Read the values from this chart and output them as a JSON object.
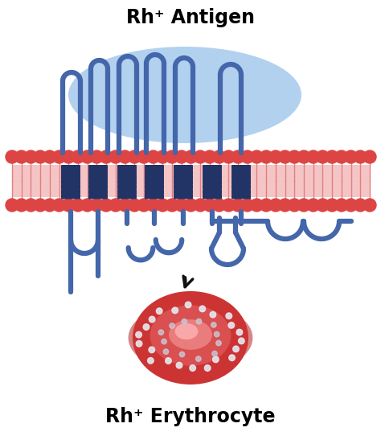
{
  "title_top": "Rh⁺ Antigen",
  "title_bottom": "Rh⁺ Erythrocyte",
  "bg_color": "#ffffff",
  "membrane_head_color": "#dd4444",
  "membrane_tail_color": "#f5c5c5",
  "protein_color": "#4466aa",
  "protein_edge_color": "#2244aa",
  "protein_light_color": "#aaccee",
  "helix_stripe_color": "#223366",
  "rbc_outer_color": "#cc3333",
  "rbc_mid_color": "#dd5555",
  "rbc_light_color": "#ee8888",
  "rbc_dot_color": "#ddddee",
  "arrow_color": "#111111",
  "title_fontsize": 17,
  "label_fontsize": 16
}
